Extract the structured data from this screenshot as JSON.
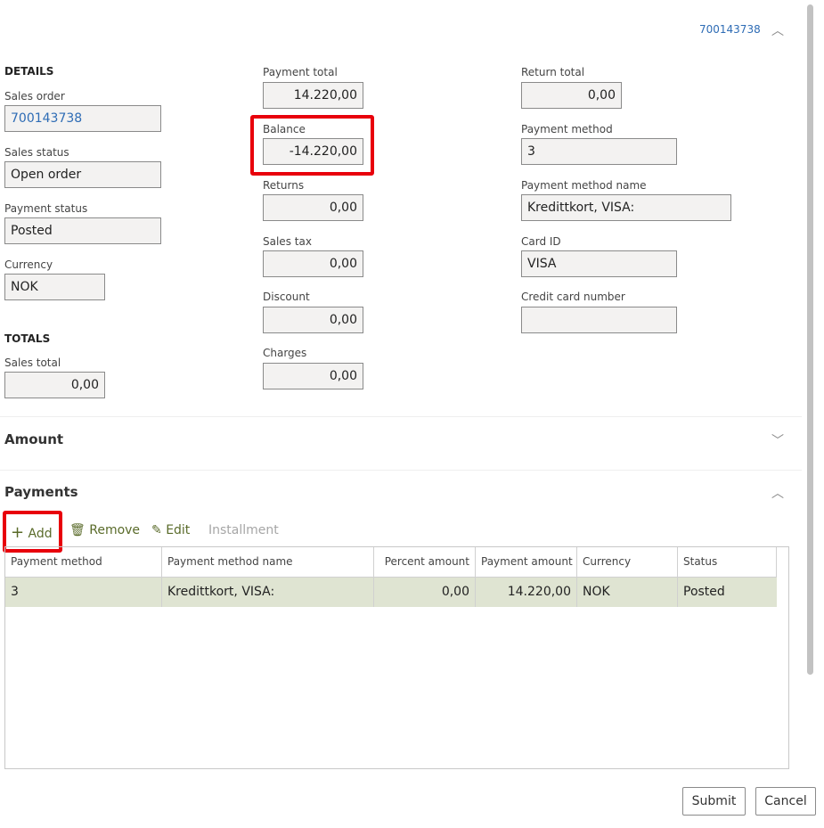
{
  "header": {
    "order_link": "700143738"
  },
  "details": {
    "title": "DETAILS",
    "sales_order": {
      "label": "Sales order",
      "value": "700143738"
    },
    "sales_status": {
      "label": "Sales status",
      "value": "Open order"
    },
    "payment_status": {
      "label": "Payment status",
      "value": "Posted"
    },
    "currency": {
      "label": "Currency",
      "value": "NOK"
    }
  },
  "totals": {
    "title": "TOTALS",
    "sales_total": {
      "label": "Sales total",
      "value": "0,00"
    }
  },
  "amounts": {
    "payment_total": {
      "label": "Payment total",
      "value": "14.220,00"
    },
    "balance": {
      "label": "Balance",
      "value": "-14.220,00"
    },
    "returns": {
      "label": "Returns",
      "value": "0,00"
    },
    "sales_tax": {
      "label": "Sales tax",
      "value": "0,00"
    },
    "discount": {
      "label": "Discount",
      "value": "0,00"
    },
    "charges": {
      "label": "Charges",
      "value": "0,00"
    }
  },
  "payment_info": {
    "return_total": {
      "label": "Return total",
      "value": "0,00"
    },
    "payment_method": {
      "label": "Payment method",
      "value": "3"
    },
    "payment_method_name": {
      "label": "Payment method name",
      "value": "Kredittkort, VISA:"
    },
    "card_id": {
      "label": "Card ID",
      "value": "VISA"
    },
    "credit_card_number": {
      "label": "Credit card number",
      "value": ""
    }
  },
  "sections": {
    "amount": "Amount",
    "payments": "Payments"
  },
  "toolbar": {
    "add": "Add",
    "remove": "Remove",
    "edit": "Edit",
    "installment": "Installment"
  },
  "grid": {
    "columns": [
      "Payment method",
      "Payment method name",
      "Percent amount",
      "Payment amount",
      "Currency",
      "Status"
    ],
    "rows": [
      [
        "3",
        "Kredittkort, VISA:",
        "0,00",
        "14.220,00",
        "NOK",
        "Posted"
      ]
    ]
  },
  "footer": {
    "submit": "Submit",
    "cancel": "Cancel"
  },
  "colors": {
    "highlight": "#e8000b",
    "selected_row": "#dfe4d2",
    "link": "#2e6cb5"
  }
}
